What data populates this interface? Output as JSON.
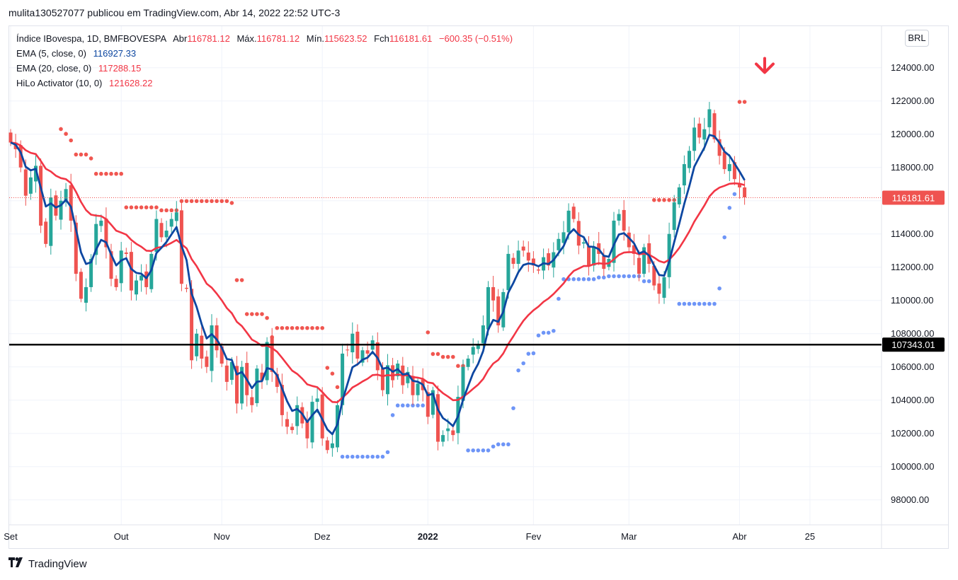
{
  "header": {
    "publisher_line": "mulita130527077 publicou em TradingView.com, Abr 14, 2022 22:52 UTC-3"
  },
  "legend": {
    "symbol": "Índice IBovespa, 1D, BMFBOVESPA",
    "open_label": "Abr",
    "open": "116781.12",
    "high_label": "Máx.",
    "high": "116781.12",
    "low_label": "Mín.",
    "low": "115623.52",
    "close_label": "Fch",
    "close": "116181.61",
    "change": "−600.35 (−0.51%)",
    "ema5_label": "EMA (5, close, 0)",
    "ema5_value": "116927.33",
    "ema20_label": "EMA (20, close, 0)",
    "ema20_value": "117288.15",
    "hilo_label": "HiLo Activator (10, 0)",
    "hilo_value": "121628.22"
  },
  "currency": "BRL",
  "brand": {
    "name": "TradingView",
    "icon": "tradingview-logo-icon"
  },
  "colors": {
    "up": "#26a69a",
    "down": "#ef5350",
    "ema5": "#0d47a1",
    "ema20": "#f23645",
    "hilo_high": "#f05650",
    "hilo_low": "#6e95f7",
    "hline": "#000000"
  },
  "chart_data": {
    "type": "candlestick",
    "ylim": [
      96500,
      126500
    ],
    "y_ticks": [
      "98000.00",
      "100000.00",
      "102000.00",
      "104000.00",
      "106000.00",
      "108000.00",
      "110000.00",
      "112000.00",
      "114000.00",
      "116000.00",
      "118000.00",
      "120000.00",
      "122000.00",
      "124000.00"
    ],
    "x_ticks": [
      {
        "label": "Set",
        "index": 0
      },
      {
        "label": "Out",
        "index": 22
      },
      {
        "label": "Nov",
        "index": 42
      },
      {
        "label": "Dez",
        "index": 62
      },
      {
        "label": "2022",
        "index": 83,
        "bold": true
      },
      {
        "label": "Fev",
        "index": 104
      },
      {
        "label": "Mar",
        "index": 123
      },
      {
        "label": "Abr",
        "index": 145
      },
      {
        "label": "25",
        "index": 159
      }
    ],
    "last_price": {
      "value": 116181.61,
      "label": "116181.61"
    },
    "horizontal_line": {
      "value": 107343.01,
      "label": "107343.01"
    },
    "signal_arrow": {
      "index": 150,
      "price": 123800,
      "direction": "down"
    },
    "closes": [
      119500,
      119100,
      118000,
      116300,
      117400,
      118100,
      114500,
      113400,
      116200,
      115100,
      116000,
      116700,
      114800,
      111600,
      110100,
      110800,
      112500,
      114600,
      114800,
      113200,
      111300,
      110800,
      113000,
      112800,
      110600,
      111200,
      111500,
      110800,
      112800,
      114900,
      113800,
      114200,
      114900,
      115300,
      111000,
      110700,
      106400,
      108000,
      106500,
      106000,
      108500,
      107000,
      106200,
      105100,
      106300,
      103800,
      106000,
      104300,
      103700,
      105900,
      105200,
      107500,
      105700,
      104800,
      103100,
      102400,
      102200,
      103700,
      102600,
      101700,
      103900,
      104100,
      101700,
      101000,
      101400,
      103700,
      106800,
      107000,
      108000,
      106500,
      107000,
      106800,
      107600,
      105800,
      104600,
      106100,
      105200,
      106200,
      104900,
      105700,
      104300,
      105000,
      104600,
      103000,
      104600,
      101500,
      101900,
      102300,
      101900,
      104200,
      106000,
      106500,
      107200,
      107300,
      108500,
      110800,
      110000,
      108500,
      110500,
      112800,
      112200,
      113000,
      113000,
      112400,
      112100,
      111800,
      112600,
      112100,
      112900,
      113700,
      114100,
      115400,
      114900,
      113300,
      113500,
      112100,
      113200,
      112800,
      111900,
      112500,
      114800,
      115200,
      114200,
      113200,
      112800,
      111600,
      113200,
      112200,
      110900,
      110400,
      111400,
      114000,
      115900,
      116800,
      118200,
      119000,
      120400,
      119800,
      120300,
      121500,
      119700,
      118700,
      117900,
      118200,
      117300,
      116800,
      116200
    ]
  }
}
